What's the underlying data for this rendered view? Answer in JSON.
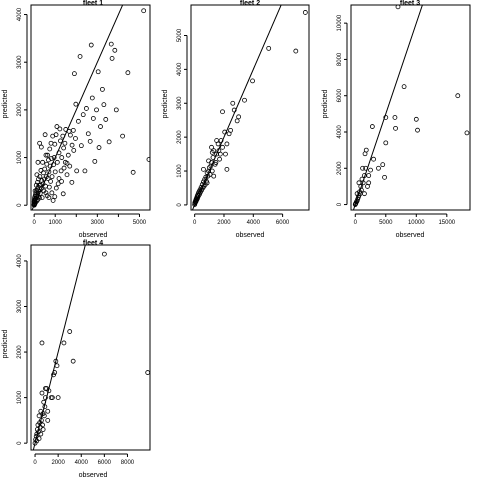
{
  "chart_data": [
    {
      "type": "scatter",
      "title": "fleet 1",
      "xlabel": "observed",
      "ylabel": "predicted",
      "xlim": [
        -150,
        5500
      ],
      "ylim": [
        -100,
        4200
      ],
      "xticks": [
        0,
        1000,
        2000,
        3000,
        4000,
        5000
      ],
      "xtick_labels": [
        "0",
        "1000",
        "",
        "3000",
        "",
        "5000"
      ],
      "yticks": [
        0,
        1000,
        2000,
        3000,
        4000
      ],
      "reference_line": {
        "slope": 1,
        "intercept": 0
      },
      "points": [
        [
          5200,
          4080
        ],
        [
          5450,
          960
        ],
        [
          4700,
          690
        ],
        [
          4450,
          2780
        ],
        [
          3830,
          3250
        ],
        [
          3700,
          3080
        ],
        [
          3660,
          3380
        ],
        [
          3560,
          1330
        ],
        [
          3310,
          2110
        ],
        [
          3240,
          2430
        ],
        [
          3080,
          1210
        ],
        [
          3040,
          2800
        ],
        [
          2960,
          2000
        ],
        [
          2810,
          1820
        ],
        [
          2710,
          3360
        ],
        [
          2660,
          1340
        ],
        [
          2760,
          2250
        ],
        [
          2480,
          2030
        ],
        [
          2410,
          720
        ],
        [
          2180,
          3120
        ],
        [
          2330,
          1900
        ],
        [
          1910,
          2760
        ],
        [
          1980,
          2120
        ],
        [
          2020,
          720
        ],
        [
          1860,
          1570
        ],
        [
          1800,
          1260
        ],
        [
          1720,
          1470
        ],
        [
          1660,
          1550
        ],
        [
          1620,
          1050
        ],
        [
          1560,
          880
        ],
        [
          1500,
          1590
        ],
        [
          1460,
          1300
        ],
        [
          1420,
          780
        ],
        [
          1400,
          1200
        ],
        [
          1360,
          1450
        ],
        [
          1310,
          1000
        ],
        [
          1280,
          720
        ],
        [
          1250,
          1350
        ],
        [
          1220,
          1600
        ],
        [
          1180,
          1100
        ],
        [
          1140,
          450
        ],
        [
          1100,
          900
        ],
        [
          1080,
          1650
        ],
        [
          1040,
          1480
        ],
        [
          1000,
          700
        ],
        [
          980,
          1280
        ],
        [
          950,
          1000
        ],
        [
          920,
          850
        ],
        [
          900,
          100
        ],
        [
          880,
          1450
        ],
        [
          850,
          600
        ],
        [
          820,
          980
        ],
        [
          800,
          1300
        ],
        [
          780,
          500
        ],
        [
          760,
          820
        ],
        [
          740,
          1180
        ],
        [
          720,
          380
        ],
        [
          700,
          700
        ],
        [
          680,
          950
        ],
        [
          660,
          560
        ],
        [
          640,
          1050
        ],
        [
          620,
          200
        ],
        [
          600,
          860
        ],
        [
          580,
          600
        ],
        [
          560,
          1050
        ],
        [
          540,
          400
        ],
        [
          520,
          1480
        ],
        [
          500,
          760
        ],
        [
          480,
          550
        ],
        [
          460,
          300
        ],
        [
          440,
          680
        ],
        [
          420,
          450
        ],
        [
          400,
          900
        ],
        [
          380,
          160
        ],
        [
          360,
          520
        ],
        [
          340,
          350
        ],
        [
          320,
          730
        ],
        [
          300,
          420
        ],
        [
          290,
          250
        ],
        [
          270,
          600
        ],
        [
          260,
          1300
        ],
        [
          250,
          150
        ],
        [
          240,
          420
        ],
        [
          220,
          300
        ],
        [
          210,
          550
        ],
        [
          200,
          180
        ],
        [
          190,
          380
        ],
        [
          180,
          260
        ],
        [
          170,
          120
        ],
        [
          160,
          480
        ],
        [
          150,
          340
        ],
        [
          140,
          200
        ],
        [
          130,
          90
        ],
        [
          120,
          310
        ],
        [
          110,
          180
        ],
        [
          100,
          420
        ],
        [
          90,
          260
        ],
        [
          80,
          140
        ],
        [
          70,
          60
        ],
        [
          60,
          220
        ],
        [
          50,
          120
        ],
        [
          45,
          300
        ],
        [
          40,
          40
        ],
        [
          35,
          180
        ],
        [
          30,
          90
        ],
        [
          25,
          20
        ],
        [
          20,
          150
        ],
        [
          15,
          60
        ],
        [
          10,
          10
        ],
        [
          8,
          110
        ],
        [
          5,
          30
        ],
        [
          3,
          5
        ],
        [
          2,
          70
        ],
        [
          1,
          15
        ],
        [
          0,
          0
        ],
        [
          130,
          640
        ],
        [
          180,
          900
        ],
        [
          340,
          1220
        ],
        [
          560,
          260
        ],
        [
          700,
          160
        ],
        [
          840,
          260
        ],
        [
          980,
          180
        ],
        [
          1050,
          360
        ],
        [
          1180,
          560
        ],
        [
          1300,
          500
        ],
        [
          1380,
          240
        ],
        [
          1480,
          900
        ],
        [
          1560,
          640
        ],
        [
          1690,
          820
        ],
        [
          1790,
          480
        ],
        [
          1880,
          1150
        ],
        [
          1960,
          1400
        ],
        [
          2100,
          1760
        ],
        [
          2240,
          1250
        ],
        [
          2570,
          1500
        ],
        [
          2880,
          920
        ],
        [
          3150,
          1650
        ],
        [
          3400,
          1800
        ],
        [
          3900,
          2000
        ],
        [
          4200,
          1450
        ]
      ]
    },
    {
      "type": "scatter",
      "title": "fleet 2",
      "xlabel": "observed",
      "ylabel": "predicted",
      "xlim": [
        -250,
        7800
      ],
      "ylim": [
        -150,
        5900
      ],
      "xticks": [
        0,
        2000,
        4000,
        6000
      ],
      "xtick_labels": [
        "0",
        "2000",
        "4000",
        "6000"
      ],
      "yticks": [
        0,
        1000,
        2000,
        3000,
        4000,
        5000
      ],
      "reference_line": {
        "slope": 1,
        "intercept": 0
      },
      "points": [
        [
          7550,
          5680
        ],
        [
          6900,
          4540
        ],
        [
          5050,
          4620
        ],
        [
          3950,
          3660
        ],
        [
          3400,
          3090
        ],
        [
          2900,
          2480
        ],
        [
          2700,
          2800
        ],
        [
          2600,
          3000
        ],
        [
          2450,
          2200
        ],
        [
          2350,
          2100
        ],
        [
          2200,
          1800
        ],
        [
          2100,
          1500
        ],
        [
          2050,
          2150
        ],
        [
          1900,
          1700
        ],
        [
          1800,
          1900
        ],
        [
          1700,
          1350
        ],
        [
          1650,
          1600
        ],
        [
          1600,
          1800
        ],
        [
          1500,
          1500
        ],
        [
          1450,
          1250
        ],
        [
          1400,
          1200
        ],
        [
          1300,
          1600
        ],
        [
          1250,
          1400
        ],
        [
          1200,
          1000
        ],
        [
          1150,
          1250
        ],
        [
          1100,
          1150
        ],
        [
          1050,
          900
        ],
        [
          1000,
          1100
        ],
        [
          950,
          1000
        ],
        [
          900,
          850
        ],
        [
          850,
          950
        ],
        [
          800,
          700
        ],
        [
          760,
          820
        ],
        [
          720,
          600
        ],
        [
          680,
          750
        ],
        [
          640,
          550
        ],
        [
          600,
          680
        ],
        [
          560,
          500
        ],
        [
          520,
          600
        ],
        [
          480,
          440
        ],
        [
          440,
          520
        ],
        [
          400,
          380
        ],
        [
          370,
          450
        ],
        [
          340,
          320
        ],
        [
          310,
          400
        ],
        [
          280,
          280
        ],
        [
          250,
          350
        ],
        [
          220,
          230
        ],
        [
          200,
          290
        ],
        [
          180,
          180
        ],
        [
          160,
          240
        ],
        [
          140,
          150
        ],
        [
          120,
          190
        ],
        [
          100,
          110
        ],
        [
          80,
          150
        ],
        [
          60,
          80
        ],
        [
          40,
          100
        ],
        [
          20,
          40
        ],
        [
          10,
          60
        ],
        [
          0,
          10
        ],
        [
          1900,
          2750
        ],
        [
          1500,
          1900
        ],
        [
          950,
          1300
        ],
        [
          1300,
          850
        ],
        [
          2200,
          1050
        ],
        [
          1750,
          1500
        ],
        [
          1150,
          1700
        ],
        [
          3000,
          2600
        ],
        [
          1200,
          1550
        ],
        [
          600,
          1050
        ],
        [
          850,
          650
        ]
      ]
    },
    {
      "type": "scatter",
      "title": "fleet 3",
      "xlabel": "observed",
      "ylabel": "predicted",
      "xlim": [
        -700,
        18800
      ],
      "ylim": [
        -300,
        11000
      ],
      "xticks": [
        0,
        5000,
        10000,
        15000
      ],
      "xtick_labels": [
        "0",
        "5000",
        "10000",
        "15000"
      ],
      "yticks": [
        0,
        2000,
        4000,
        6000,
        8000,
        10000
      ],
      "reference_line": {
        "slope": 1,
        "intercept": 0
      },
      "points": [
        [
          7000,
          10900
        ],
        [
          18300,
          3950
        ],
        [
          16800,
          6000
        ],
        [
          10000,
          4700
        ],
        [
          10200,
          4100
        ],
        [
          8000,
          6500
        ],
        [
          6600,
          4200
        ],
        [
          6500,
          4800
        ],
        [
          5000,
          4800
        ],
        [
          5000,
          3400
        ],
        [
          4500,
          2200
        ],
        [
          4800,
          1500
        ],
        [
          3800,
          2000
        ],
        [
          3000,
          2500
        ],
        [
          2800,
          4300
        ],
        [
          2500,
          1900
        ],
        [
          2200,
          1600
        ],
        [
          2000,
          1000
        ],
        [
          1800,
          3000
        ],
        [
          1600,
          2800
        ],
        [
          1500,
          1600
        ],
        [
          1300,
          1200
        ],
        [
          1100,
          1400
        ],
        [
          1000,
          800
        ],
        [
          900,
          1000
        ],
        [
          800,
          600
        ],
        [
          700,
          700
        ],
        [
          600,
          500
        ],
        [
          500,
          400
        ],
        [
          400,
          300
        ],
        [
          300,
          200
        ],
        [
          200,
          150
        ],
        [
          100,
          80
        ],
        [
          50,
          40
        ],
        [
          0,
          0
        ],
        [
          1200,
          2000
        ],
        [
          2200,
          1200
        ],
        [
          1500,
          600
        ],
        [
          1700,
          2000
        ],
        [
          600,
          1200
        ],
        [
          300,
          600
        ]
      ]
    },
    {
      "type": "scatter",
      "title": "fleet 4",
      "xlabel": "observed",
      "ylabel": "predicted",
      "xlim": [
        -350,
        9950
      ],
      "ylim": [
        -150,
        4350
      ],
      "xticks": [
        0,
        2000,
        4000,
        6000,
        8000
      ],
      "xtick_labels": [
        "0",
        "2000",
        "4000",
        "6000",
        "8000"
      ],
      "yticks": [
        0,
        1000,
        2000,
        3000,
        4000
      ],
      "reference_line": {
        "slope": 1,
        "intercept": 0
      },
      "points": [
        [
          6000,
          4150
        ],
        [
          9750,
          1550
        ],
        [
          3000,
          2450
        ],
        [
          3300,
          1800
        ],
        [
          2500,
          2200
        ],
        [
          1800,
          1800
        ],
        [
          1900,
          1700
        ],
        [
          1600,
          1500
        ],
        [
          1700,
          1550
        ],
        [
          1500,
          1000
        ],
        [
          1400,
          1000
        ],
        [
          1200,
          1150
        ],
        [
          1100,
          700
        ],
        [
          1000,
          1200
        ],
        [
          900,
          1000
        ],
        [
          850,
          800
        ],
        [
          800,
          600
        ],
        [
          750,
          900
        ],
        [
          700,
          650
        ],
        [
          650,
          400
        ],
        [
          600,
          1100
        ],
        [
          550,
          500
        ],
        [
          500,
          700
        ],
        [
          450,
          350
        ],
        [
          400,
          450
        ],
        [
          350,
          600
        ],
        [
          300,
          250
        ],
        [
          250,
          400
        ],
        [
          200,
          300
        ],
        [
          150,
          200
        ],
        [
          100,
          150
        ],
        [
          50,
          80
        ],
        [
          0,
          0
        ],
        [
          600,
          2200
        ],
        [
          900,
          1200
        ],
        [
          2000,
          1000
        ],
        [
          1100,
          500
        ],
        [
          700,
          300
        ],
        [
          500,
          200
        ],
        [
          350,
          100
        ],
        [
          150,
          50
        ]
      ]
    }
  ]
}
